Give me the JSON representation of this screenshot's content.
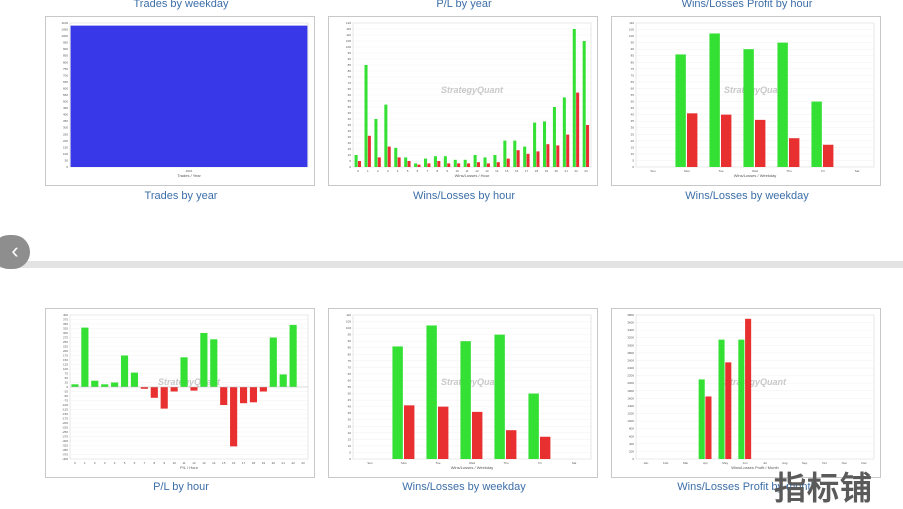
{
  "header_captions": [
    "Trades by weekday",
    "P/L by year",
    "Wins/Losses Profit by hour"
  ],
  "colors": {
    "win": "#33e033",
    "loss": "#e83030",
    "trades": "#3838e8",
    "grid": "#ededed"
  },
  "nav": {
    "prev_icon": "‹"
  },
  "watermark_logo": "指标铺",
  "chart_watermark": "StrategyQuant",
  "chart_data": [
    {
      "id": "trades-by-year",
      "type": "bar",
      "title": "Trades by year",
      "xlabel": "Trades / Year",
      "categories": [
        "2021"
      ],
      "series": [
        {
          "role": "trades",
          "values": [
            1080
          ]
        }
      ],
      "ylim": [
        0,
        1100
      ],
      "yticks": [
        "0",
        "50",
        "100",
        "150",
        "200",
        "250",
        "300",
        "350",
        "400",
        "450",
        "500",
        "550",
        "600",
        "650",
        "700",
        "750",
        "800",
        "850",
        "900",
        "950",
        "1000",
        "1050",
        "1100"
      ]
    },
    {
      "id": "wins-losses-by-hour",
      "type": "bar",
      "title": "Wins/Losses by hour",
      "xlabel": "Wins/Losses / Hour",
      "categories": [
        "0",
        "1",
        "2",
        "3",
        "4",
        "5",
        "6",
        "7",
        "8",
        "9",
        "10",
        "11",
        "12",
        "13",
        "14",
        "15",
        "16",
        "17",
        "18",
        "19",
        "20",
        "21",
        "22",
        "23"
      ],
      "series": [
        {
          "role": "win",
          "values": [
            10,
            85,
            40,
            52,
            16,
            8,
            3,
            7,
            9,
            9,
            6,
            6,
            10,
            8,
            10,
            22,
            22,
            17,
            37,
            38,
            50,
            58,
            115,
            105
          ]
        },
        {
          "role": "loss",
          "values": [
            5,
            26,
            8,
            17,
            8,
            5,
            2,
            3,
            5,
            3,
            3,
            3,
            4,
            3,
            4,
            7,
            14,
            11,
            13,
            19,
            18,
            27,
            62,
            35
          ]
        }
      ],
      "ylim": [
        0,
        120
      ],
      "yticks": [
        "0",
        "5",
        "10",
        "15",
        "20",
        "25",
        "30",
        "35",
        "40",
        "45",
        "50",
        "55",
        "60",
        "65",
        "70",
        "75",
        "80",
        "85",
        "90",
        "95",
        "100",
        "105",
        "110",
        "115",
        "120"
      ]
    },
    {
      "id": "wins-losses-by-weekday-top",
      "type": "bar",
      "title": "Wins/Losses by weekday",
      "xlabel": "Wins/Losses / Weekday",
      "categories": [
        "Sun",
        "Mon",
        "Tue",
        "Wed",
        "Thu",
        "Fri",
        "Sat"
      ],
      "series": [
        {
          "role": "win",
          "values": [
            0,
            86,
            102,
            90,
            95,
            50,
            0
          ]
        },
        {
          "role": "loss",
          "values": [
            0,
            41,
            40,
            36,
            22,
            17,
            0
          ]
        }
      ],
      "ylim": [
        0,
        110
      ],
      "yticks": [
        "0",
        "5",
        "10",
        "15",
        "20",
        "25",
        "30",
        "35",
        "40",
        "45",
        "50",
        "55",
        "60",
        "65",
        "70",
        "75",
        "80",
        "85",
        "90",
        "95",
        "100",
        "105",
        "110"
      ]
    },
    {
      "id": "pl-by-hour",
      "type": "bar",
      "title": "P/L by hour",
      "xlabel": "P/L / Hour",
      "categories": [
        "0",
        "1",
        "2",
        "3",
        "4",
        "5",
        "6",
        "7",
        "8",
        "9",
        "10",
        "11",
        "12",
        "13",
        "14",
        "15",
        "16",
        "17",
        "18",
        "19",
        "20",
        "21",
        "22",
        "23"
      ],
      "series": [
        {
          "role": "pl",
          "values": [
            15,
            330,
            35,
            15,
            25,
            175,
            80,
            -10,
            -60,
            -120,
            -25,
            165,
            -20,
            300,
            265,
            -100,
            -330,
            -90,
            -85,
            -25,
            275,
            70,
            345,
            0
          ]
        }
      ],
      "ylim": [
        -400,
        400
      ],
      "yticks": [
        "-400",
        "-375",
        "-350",
        "-325",
        "-300",
        "-275",
        "-250",
        "-225",
        "-200",
        "-175",
        "-150",
        "-125",
        "-100",
        "-75",
        "-50",
        "-25",
        "0",
        "25",
        "50",
        "75",
        "100",
        "125",
        "150",
        "175",
        "200",
        "225",
        "250",
        "275",
        "300",
        "325",
        "350",
        "375",
        "400"
      ]
    },
    {
      "id": "wins-losses-by-weekday-bottom",
      "type": "bar",
      "title": "Wins/Losses by weekday",
      "xlabel": "Wins/Losses / Weekday",
      "categories": [
        "Sun",
        "Mon",
        "Tue",
        "Wed",
        "Thu",
        "Fri",
        "Sat"
      ],
      "series": [
        {
          "role": "win",
          "values": [
            0,
            86,
            102,
            90,
            95,
            50,
            0
          ]
        },
        {
          "role": "loss",
          "values": [
            0,
            41,
            40,
            36,
            22,
            17,
            0
          ]
        }
      ],
      "ylim": [
        0,
        110
      ],
      "yticks": [
        "0",
        "5",
        "10",
        "15",
        "20",
        "25",
        "30",
        "35",
        "40",
        "45",
        "50",
        "55",
        "60",
        "65",
        "70",
        "75",
        "80",
        "85",
        "90",
        "95",
        "100",
        "105",
        "110"
      ]
    },
    {
      "id": "wins-losses-profit-by-month",
      "type": "bar",
      "title": "Wins/Losses Profit by month",
      "xlabel": "Wins/Losses Profit / Month",
      "categories": [
        "Jan",
        "Feb",
        "Mar",
        "Apr",
        "May",
        "Jun",
        "Jul",
        "Aug",
        "Sep",
        "Oct",
        "Nov",
        "Dec"
      ],
      "series": [
        {
          "role": "win",
          "values": [
            0,
            0,
            0,
            2100,
            3150,
            3150,
            0,
            0,
            0,
            0,
            0,
            0
          ]
        },
        {
          "role": "loss",
          "values": [
            0,
            0,
            0,
            1650,
            2550,
            3700,
            0,
            0,
            0,
            0,
            0,
            0
          ]
        }
      ],
      "ylim": [
        0,
        3800
      ],
      "yticks": [
        "0",
        "200",
        "400",
        "600",
        "800",
        "1000",
        "1200",
        "1400",
        "1600",
        "1800",
        "2000",
        "2200",
        "2400",
        "2600",
        "2800",
        "3000",
        "3200",
        "3400",
        "3600",
        "3800"
      ]
    }
  ]
}
